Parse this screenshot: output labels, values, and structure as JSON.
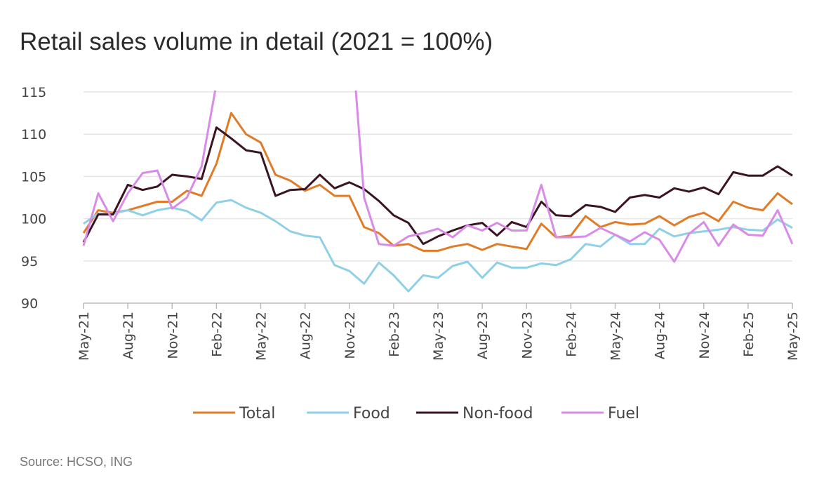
{
  "title": "Retail sales volume in detail (2021 = 100%)",
  "source": "Source: HCSO, ING",
  "chart_data": {
    "type": "line",
    "title": "Retail sales volume in detail (2021 = 100%)",
    "xlabel": "",
    "ylabel": "",
    "ylim": [
      90,
      115
    ],
    "yticks": [
      90,
      95,
      100,
      105,
      110,
      115
    ],
    "grid": true,
    "legend_placement": "bottom",
    "x": [
      "May-21",
      "Jun-21",
      "Jul-21",
      "Aug-21",
      "Sep-21",
      "Oct-21",
      "Nov-21",
      "Dec-21",
      "Jan-22",
      "Feb-22",
      "Mar-22",
      "Apr-22",
      "May-22",
      "Jun-22",
      "Jul-22",
      "Aug-22",
      "Sep-22",
      "Oct-22",
      "Nov-22",
      "Dec-22",
      "Jan-23",
      "Feb-23",
      "Mar-23",
      "Apr-23",
      "May-23",
      "Jun-23",
      "Jul-23",
      "Aug-23",
      "Sep-23",
      "Oct-23",
      "Nov-23",
      "Dec-23",
      "Jan-24",
      "Feb-24",
      "Mar-24",
      "Apr-24",
      "May-24",
      "Jun-24",
      "Jul-24",
      "Aug-24",
      "Sep-24",
      "Oct-24",
      "Nov-24",
      "Dec-24",
      "Jan-25",
      "Feb-25",
      "Mar-25",
      "Apr-25",
      "May-25"
    ],
    "xtick_labels": [
      "May-21",
      "Aug-21",
      "Nov-21",
      "Feb-22",
      "May-22",
      "Aug-22",
      "Nov-22",
      "Feb-23",
      "May-23",
      "Aug-23",
      "Nov-23",
      "Feb-24",
      "May-24",
      "Aug-24",
      "Nov-24",
      "Feb-25",
      "May-25"
    ],
    "series": [
      {
        "name": "Total",
        "color": "#E07B28",
        "values": [
          98.3,
          101,
          100.7,
          101,
          101.5,
          102,
          102,
          103.3,
          102.7,
          106.5,
          112.5,
          110,
          109,
          105.2,
          104.5,
          103.3,
          104,
          102.7,
          102.7,
          99,
          98.3,
          96.8,
          97,
          96.2,
          96.2,
          96.7,
          97,
          96.3,
          97,
          96.7,
          96.4,
          99.4,
          97.8,
          98,
          100.3,
          99,
          99.6,
          99.3,
          99.4,
          100.3,
          99.2,
          100.2,
          100.7,
          99.7,
          102,
          101.3,
          101,
          103,
          101.7
        ]
      },
      {
        "name": "Food",
        "color": "#8FD0E6",
        "values": [
          99.4,
          100.6,
          100.6,
          101,
          100.4,
          101,
          101.3,
          100.9,
          99.8,
          101.9,
          102.2,
          101.3,
          100.7,
          99.7,
          98.5,
          98,
          97.8,
          94.5,
          93.8,
          92.3,
          94.8,
          93.3,
          91.4,
          93.3,
          93,
          94.4,
          94.9,
          93,
          94.8,
          94.2,
          94.2,
          94.7,
          94.5,
          95.2,
          97,
          96.7,
          98.1,
          97,
          97,
          98.8,
          97.9,
          98.3,
          98.5,
          98.7,
          99,
          98.7,
          98.6,
          99.9,
          98.9
        ]
      },
      {
        "name": "Non-food",
        "color": "#3A1420",
        "values": [
          97.2,
          100.5,
          100.5,
          104,
          103.4,
          103.8,
          105.2,
          105,
          104.7,
          110.8,
          109.5,
          108.1,
          107.8,
          102.7,
          103.4,
          103.5,
          105.2,
          103.6,
          104.3,
          103.5,
          102.1,
          100.4,
          99.5,
          97,
          97.9,
          98.6,
          99.2,
          99.5,
          98,
          99.6,
          99,
          102,
          100.4,
          100.3,
          101.6,
          101.4,
          100.8,
          102.5,
          102.8,
          102.5,
          103.6,
          103.2,
          103.7,
          102.9,
          105.5,
          105.1,
          105.1,
          106.2,
          105.1
        ]
      },
      {
        "name": "Fuel",
        "color": "#D98BE8",
        "values": [
          96.8,
          103,
          99.7,
          103,
          105.4,
          105.7,
          101.2,
          102.5,
          106.2,
          116,
          null,
          null,
          null,
          null,
          null,
          null,
          null,
          null,
          125,
          102.5,
          97,
          96.8,
          97.9,
          98.3,
          98.8,
          97.8,
          99.2,
          98.6,
          99.5,
          98.6,
          98.6,
          104,
          97.8,
          97.8,
          97.9,
          98.9,
          98.1,
          97.3,
          98.4,
          97.5,
          94.9,
          98.2,
          99.6,
          96.8,
          99.3,
          98.1,
          98,
          101,
          97
        ]
      }
    ]
  }
}
